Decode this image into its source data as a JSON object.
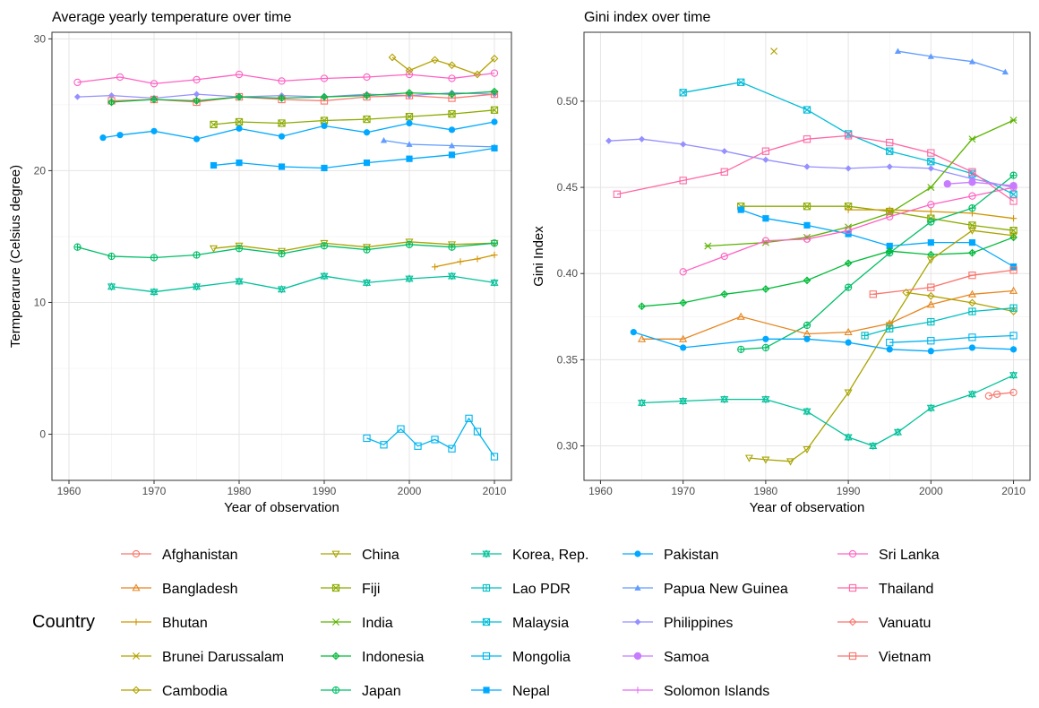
{
  "legend": {
    "title": "Country",
    "entries": [
      {
        "name": "Afghanistan",
        "color": "#F8766D",
        "marker": "circle"
      },
      {
        "name": "Bangladesh",
        "color": "#E7851E",
        "marker": "triangle"
      },
      {
        "name": "Bhutan",
        "color": "#D09400",
        "marker": "plus"
      },
      {
        "name": "Brunei Darussalam",
        "color": "#B2A100",
        "marker": "cross"
      },
      {
        "name": "Cambodia",
        "color": "#B2A100",
        "marker": "diamond"
      },
      {
        "name": "China",
        "color": "#A8A400",
        "marker": "triangle-down"
      },
      {
        "name": "Fiji",
        "color": "#8BAB00",
        "marker": "square-cross"
      },
      {
        "name": "India",
        "color": "#5BB300",
        "marker": "asterisk"
      },
      {
        "name": "Indonesia",
        "color": "#00BA38",
        "marker": "diamond-plus"
      },
      {
        "name": "Japan",
        "color": "#00BE67",
        "marker": "circle-plus"
      },
      {
        "name": "Korea, Rep.",
        "color": "#00C19A",
        "marker": "star-triangle"
      },
      {
        "name": "Lao PDR",
        "color": "#00BFC4",
        "marker": "square-plus"
      },
      {
        "name": "Malaysia",
        "color": "#00BCD8",
        "marker": "square-x"
      },
      {
        "name": "Mongolia",
        "color": "#00B4EF",
        "marker": "square-open"
      },
      {
        "name": "Nepal",
        "color": "#00A9FF",
        "marker": "square-filled"
      },
      {
        "name": "Pakistan",
        "color": "#00A9FF",
        "marker": "circle-filled"
      },
      {
        "name": "Papua New Guinea",
        "color": "#619CFF",
        "marker": "triangle-filled"
      },
      {
        "name": "Philippines",
        "color": "#9590FF",
        "marker": "diamond-filled"
      },
      {
        "name": "Samoa",
        "color": "#C77CFF",
        "marker": "circle-filled-big"
      },
      {
        "name": "Solomon Islands",
        "color": "#E76BF3",
        "marker": "plus"
      },
      {
        "name": "Sri Lanka",
        "color": "#FF61C3",
        "marker": "circle"
      },
      {
        "name": "Thailand",
        "color": "#FF67A4",
        "marker": "square-open"
      },
      {
        "name": "Vanuatu",
        "color": "#F8766D",
        "marker": "diamond"
      },
      {
        "name": "Vietnam",
        "color": "#F8766D",
        "marker": "square-minus"
      }
    ]
  },
  "chart_data": [
    {
      "type": "line",
      "title": "Average yearly temperature over time",
      "xlabel": "Year of observation",
      "ylabel": "Termperarure (Celsius degree)",
      "xlim": [
        1958,
        2012
      ],
      "ylim": [
        -3.5,
        30.5
      ],
      "xticks": [
        1960,
        1970,
        1980,
        1990,
        2000,
        2010
      ],
      "yticks": [
        0,
        10,
        20,
        30
      ],
      "grid": true,
      "series": [
        {
          "name": "Sri Lanka",
          "x": [
            1961,
            1966,
            1970,
            1975,
            1980,
            1985,
            1990,
            1995,
            2000,
            2005,
            2010
          ],
          "y": [
            26.7,
            27.1,
            26.6,
            26.9,
            27.3,
            26.8,
            27.0,
            27.1,
            27.3,
            27.0,
            27.4
          ]
        },
        {
          "name": "Cambodia",
          "x": [
            1998,
            2000,
            2003,
            2005,
            2008,
            2010
          ],
          "y": [
            28.6,
            27.6,
            28.4,
            28.0,
            27.3,
            28.5
          ]
        },
        {
          "name": "Philippines",
          "x": [
            1961,
            1965,
            1970,
            1975,
            1980,
            1985,
            1990,
            1995,
            2000,
            2005,
            2010
          ],
          "y": [
            25.6,
            25.7,
            25.5,
            25.8,
            25.6,
            25.7,
            25.6,
            25.8,
            25.7,
            25.9,
            25.8
          ]
        },
        {
          "name": "Vietnam",
          "x": [
            1965,
            1970,
            1975,
            1980,
            1985,
            1990,
            1995,
            2000,
            2005,
            2010
          ],
          "y": [
            25.3,
            25.4,
            25.2,
            25.6,
            25.4,
            25.3,
            25.6,
            25.7,
            25.5,
            25.8
          ]
        },
        {
          "name": "Indonesia",
          "x": [
            1965,
            1970,
            1975,
            1980,
            1985,
            1990,
            1995,
            2000,
            2005,
            2010
          ],
          "y": [
            25.2,
            25.4,
            25.3,
            25.6,
            25.5,
            25.6,
            25.7,
            25.9,
            25.8,
            26.0
          ]
        },
        {
          "name": "Fiji",
          "x": [
            1977,
            1980,
            1985,
            1990,
            1995,
            2000,
            2005,
            2010
          ],
          "y": [
            23.5,
            23.7,
            23.6,
            23.8,
            23.9,
            24.1,
            24.3,
            24.6
          ]
        },
        {
          "name": "Pakistan",
          "x": [
            1964,
            1966,
            1970,
            1975,
            1980,
            1985,
            1990,
            1995,
            2000,
            2005,
            2010
          ],
          "y": [
            22.5,
            22.7,
            23.0,
            22.4,
            23.2,
            22.6,
            23.4,
            22.9,
            23.6,
            23.1,
            23.7
          ]
        },
        {
          "name": "Papua New Guinea",
          "x": [
            1997,
            2000,
            2005,
            2010
          ],
          "y": [
            22.3,
            22.0,
            21.9,
            21.8
          ]
        },
        {
          "name": "Nepal",
          "x": [
            1977,
            1980,
            1985,
            1990,
            1995,
            2000,
            2005,
            2010
          ],
          "y": [
            20.4,
            20.6,
            20.3,
            20.2,
            20.6,
            20.9,
            21.2,
            21.7
          ]
        },
        {
          "name": "China",
          "x": [
            1977,
            1980,
            1985,
            1990,
            1995,
            2000,
            2005,
            2010
          ],
          "y": [
            14.1,
            14.3,
            13.9,
            14.5,
            14.2,
            14.6,
            14.4,
            14.5
          ]
        },
        {
          "name": "Japan",
          "x": [
            1961,
            1965,
            1970,
            1975,
            1980,
            1985,
            1990,
            1995,
            2000,
            2005,
            2010
          ],
          "y": [
            14.2,
            13.5,
            13.4,
            13.6,
            14.1,
            13.7,
            14.3,
            14.0,
            14.4,
            14.2,
            14.5
          ]
        },
        {
          "name": "Bhutan",
          "x": [
            2003,
            2006,
            2008,
            2010
          ],
          "y": [
            12.7,
            13.1,
            13.3,
            13.6
          ]
        },
        {
          "name": "Korea, Rep.",
          "x": [
            1965,
            1970,
            1975,
            1980,
            1985,
            1990,
            1995,
            2000,
            2005,
            2010
          ],
          "y": [
            11.2,
            10.8,
            11.2,
            11.6,
            11.0,
            12.0,
            11.5,
            11.8,
            12.0,
            11.5
          ]
        },
        {
          "name": "Mongolia",
          "x": [
            1995,
            1997,
            1999,
            2001,
            2003,
            2005,
            2007,
            2008,
            2010
          ],
          "y": [
            -0.3,
            -0.8,
            0.4,
            -0.9,
            -0.4,
            -1.1,
            1.2,
            0.2,
            -1.7
          ]
        }
      ]
    },
    {
      "type": "line",
      "title": "Gini index over time",
      "xlabel": "Year of observation",
      "ylabel": "Gini Index",
      "xlim": [
        1958,
        2012
      ],
      "ylim": [
        0.28,
        0.54
      ],
      "xticks": [
        1960,
        1970,
        1980,
        1990,
        2000,
        2010
      ],
      "yticks": [
        0.3,
        0.35,
        0.4,
        0.45,
        0.5
      ],
      "grid": true,
      "series": [
        {
          "name": "Papua New Guinea",
          "x": [
            1996,
            2000,
            2005,
            2009
          ],
          "y": [
            0.529,
            0.526,
            0.523,
            0.517
          ]
        },
        {
          "name": "Malaysia",
          "x": [
            1970,
            1977,
            1985,
            1990,
            1995,
            2000,
            2005,
            2010
          ],
          "y": [
            0.505,
            0.511,
            0.495,
            0.481,
            0.471,
            0.465,
            0.458,
            0.446
          ]
        },
        {
          "name": "Philippines",
          "x": [
            1961,
            1965,
            1970,
            1975,
            1980,
            1985,
            1990,
            1995,
            2000,
            2005,
            2010
          ],
          "y": [
            0.477,
            0.478,
            0.475,
            0.471,
            0.466,
            0.462,
            0.461,
            0.462,
            0.461,
            0.455,
            0.45
          ]
        },
        {
          "name": "Thailand",
          "x": [
            1962,
            1970,
            1975,
            1980,
            1985,
            1990,
            1995,
            2000,
            2005,
            2010
          ],
          "y": [
            0.446,
            0.454,
            0.459,
            0.471,
            0.478,
            0.48,
            0.476,
            0.47,
            0.459,
            0.442
          ]
        },
        {
          "name": "India",
          "x": [
            1973,
            1980,
            1985,
            1990,
            1995,
            2000,
            2005,
            2010
          ],
          "y": [
            0.416,
            0.418,
            0.421,
            0.427,
            0.435,
            0.45,
            0.478,
            0.489
          ]
        },
        {
          "name": "Fiji",
          "x": [
            1977,
            1985,
            1990,
            1995,
            2000,
            2005,
            2010
          ],
          "y": [
            0.439,
            0.439,
            0.439,
            0.436,
            0.432,
            0.428,
            0.425
          ]
        },
        {
          "name": "Bhutan",
          "x": [
            1990,
            1995,
            2000,
            2005,
            2010
          ],
          "y": [
            0.437,
            0.437,
            0.436,
            0.435,
            0.432
          ]
        },
        {
          "name": "Nepal",
          "x": [
            1977,
            1980,
            1985,
            1990,
            1995,
            2000,
            2005,
            2010
          ],
          "y": [
            0.437,
            0.432,
            0.428,
            0.423,
            0.416,
            0.418,
            0.418,
            0.404
          ]
        },
        {
          "name": "Sri Lanka",
          "x": [
            1970,
            1975,
            1980,
            1985,
            1990,
            1995,
            2000,
            2005,
            2010
          ],
          "y": [
            0.401,
            0.41,
            0.419,
            0.42,
            0.425,
            0.433,
            0.44,
            0.445,
            0.45
          ]
        },
        {
          "name": "Japan",
          "x": [
            1977,
            1980,
            1985,
            1990,
            1995,
            2000,
            2005,
            2010
          ],
          "y": [
            0.356,
            0.357,
            0.37,
            0.392,
            0.412,
            0.43,
            0.438,
            0.457
          ]
        },
        {
          "name": "Indonesia",
          "x": [
            1965,
            1970,
            1975,
            1980,
            1985,
            1990,
            1995,
            2000,
            2005,
            2010
          ],
          "y": [
            0.381,
            0.383,
            0.388,
            0.391,
            0.396,
            0.406,
            0.413,
            0.411,
            0.412,
            0.421
          ]
        },
        {
          "name": "China",
          "x": [
            1978,
            1980,
            1983,
            1985,
            1990,
            1995,
            2000,
            2005,
            2010
          ],
          "y": [
            0.293,
            0.292,
            0.291,
            0.298,
            0.331,
            0.37,
            0.408,
            0.425,
            0.422
          ]
        },
        {
          "name": "Samoa",
          "x": [
            2002,
            2005,
            2010
          ],
          "y": [
            0.452,
            0.453,
            0.451
          ]
        },
        {
          "name": "Vietnam",
          "x": [
            1993,
            2000,
            2005,
            2010
          ],
          "y": [
            0.388,
            0.392,
            0.399,
            0.402
          ]
        },
        {
          "name": "Bangladesh",
          "x": [
            1965,
            1970,
            1977,
            1985,
            1990,
            1995,
            2000,
            2005,
            2010
          ],
          "y": [
            0.362,
            0.362,
            0.375,
            0.365,
            0.366,
            0.371,
            0.382,
            0.388,
            0.39
          ]
        },
        {
          "name": "Cambodia",
          "x": [
            1997,
            2000,
            2005,
            2010
          ],
          "y": [
            0.389,
            0.387,
            0.383,
            0.378
          ]
        },
        {
          "name": "Lao PDR",
          "x": [
            1992,
            1995,
            2000,
            2005,
            2010
          ],
          "y": [
            0.364,
            0.368,
            0.372,
            0.378,
            0.38
          ]
        },
        {
          "name": "Mongolia",
          "x": [
            1995,
            2000,
            2005,
            2010
          ],
          "y": [
            0.36,
            0.361,
            0.363,
            0.364
          ]
        },
        {
          "name": "Pakistan",
          "x": [
            1964,
            1970,
            1980,
            1985,
            1990,
            1995,
            2000,
            2005,
            2010
          ],
          "y": [
            0.366,
            0.357,
            0.362,
            0.362,
            0.36,
            0.356,
            0.355,
            0.357,
            0.356
          ]
        },
        {
          "name": "Korea, Rep.",
          "x": [
            1965,
            1970,
            1975,
            1980,
            1985,
            1990,
            1993,
            1996,
            2000,
            2005,
            2010
          ],
          "y": [
            0.325,
            0.326,
            0.327,
            0.327,
            0.32,
            0.305,
            0.3,
            0.308,
            0.322,
            0.33,
            0.341
          ]
        },
        {
          "name": "Afghanistan",
          "x": [
            2007,
            2008,
            2010
          ],
          "y": [
            0.329,
            0.33,
            0.331
          ]
        },
        {
          "name": "Brunei Darussalam",
          "x": [
            1981
          ],
          "y": [
            0.529
          ]
        }
      ]
    }
  ]
}
